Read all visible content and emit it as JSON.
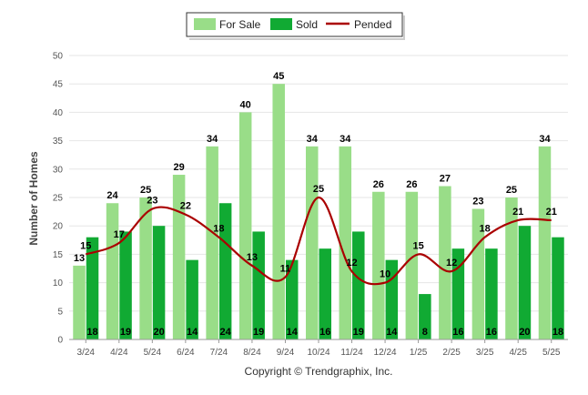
{
  "chart_data": {
    "type": "bar",
    "categories": [
      "3/24",
      "4/24",
      "5/24",
      "6/24",
      "7/24",
      "8/24",
      "9/24",
      "10/24",
      "11/24",
      "12/24",
      "1/25",
      "2/25",
      "3/25",
      "4/25",
      "5/25"
    ],
    "series": [
      {
        "name": "For Sale",
        "kind": "bar",
        "color": "#99dd88",
        "values": [
          13,
          24,
          25,
          29,
          34,
          40,
          45,
          34,
          34,
          26,
          26,
          27,
          23,
          25,
          34
        ]
      },
      {
        "name": "Sold",
        "kind": "bar",
        "color": "#11aa33",
        "values": [
          18,
          19,
          20,
          14,
          24,
          19,
          14,
          16,
          19,
          14,
          8,
          16,
          16,
          20,
          18
        ]
      },
      {
        "name": "Pended",
        "kind": "line",
        "color": "#aa0000",
        "values": [
          15,
          17,
          23,
          22,
          18,
          13,
          11,
          25,
          12,
          10,
          15,
          12,
          18,
          21,
          21
        ]
      }
    ],
    "ylabel": "Number of Homes",
    "ylim": [
      0,
      50
    ],
    "yticks": [
      0,
      5,
      10,
      15,
      20,
      25,
      30,
      35,
      40,
      45,
      50
    ],
    "grid": true,
    "legend_position": "top-center"
  },
  "footer": {
    "copyright": "Copyright © Trendgraphix, Inc."
  }
}
